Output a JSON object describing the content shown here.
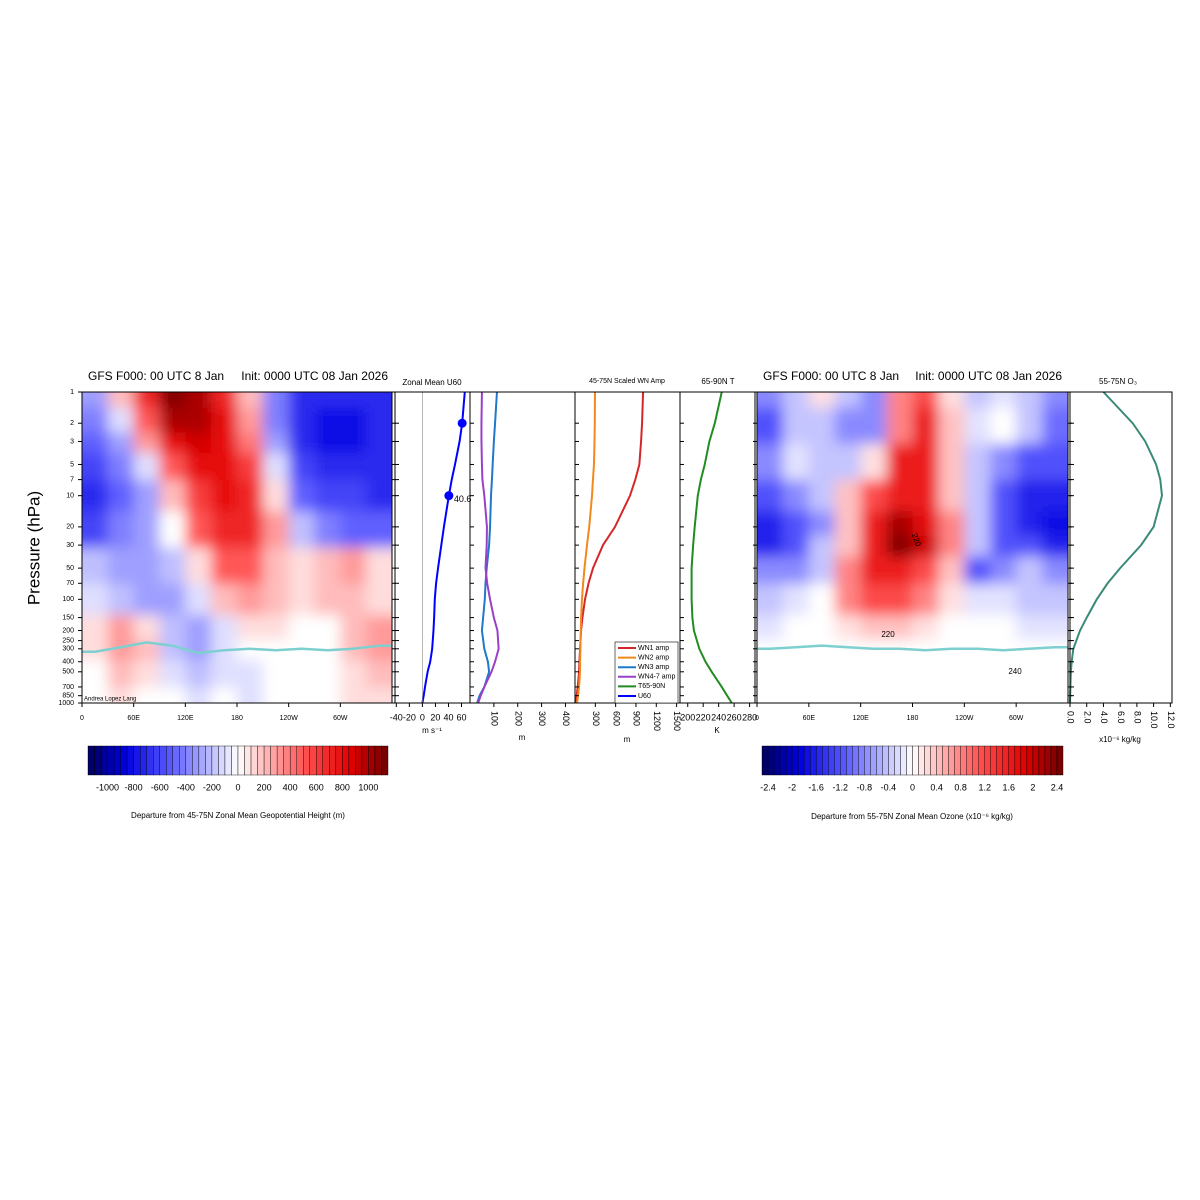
{
  "chart_data": [
    {
      "type": "heatmap",
      "title": "GFS F000: 00 UTC 8 Jan",
      "subtitle": "Init: 0000 UTC 08 Jan 2026",
      "ylabel": "Pressure (hPa)",
      "credit": "Andrea Lopez Lang",
      "x": [
        0,
        30,
        60,
        90,
        120,
        150,
        180,
        210,
        240,
        270,
        300,
        330
      ],
      "levels": [
        1,
        2,
        3,
        5,
        10,
        20,
        50,
        100,
        200,
        300,
        500,
        1000
      ],
      "values": [
        [
          -300,
          200,
          700,
          1100,
          1000,
          700,
          200,
          -400,
          -700,
          -700,
          -700,
          -700
        ],
        [
          -400,
          -100,
          500,
          1000,
          1000,
          800,
          300,
          -400,
          -700,
          -800,
          -800,
          -700
        ],
        [
          -500,
          -300,
          300,
          800,
          900,
          800,
          400,
          -300,
          -700,
          -800,
          -800,
          -700
        ],
        [
          -600,
          -400,
          -100,
          500,
          800,
          800,
          600,
          -100,
          -600,
          -700,
          -700,
          -700
        ],
        [
          -700,
          -500,
          -300,
          200,
          600,
          800,
          700,
          100,
          -500,
          -600,
          -600,
          -700
        ],
        [
          -600,
          -400,
          -300,
          0,
          500,
          700,
          700,
          300,
          -200,
          -400,
          -500,
          -500
        ],
        [
          -200,
          -300,
          -300,
          -200,
          100,
          500,
          500,
          200,
          100,
          200,
          300,
          100
        ],
        [
          -100,
          -200,
          -300,
          -300,
          -100,
          200,
          300,
          200,
          100,
          200,
          200,
          100
        ],
        [
          100,
          300,
          100,
          -200,
          -300,
          -100,
          100,
          100,
          0,
          0,
          200,
          300
        ],
        [
          100,
          300,
          200,
          -200,
          -300,
          -100,
          0,
          0,
          0,
          0,
          200,
          300
        ],
        [
          0,
          200,
          100,
          -100,
          -200,
          -100,
          -100,
          0,
          0,
          0,
          100,
          200
        ],
        [
          0,
          100,
          0,
          0,
          -100,
          0,
          -100,
          0,
          0,
          0,
          100,
          100
        ]
      ],
      "tropopause": {
        "color": "#7ecfcf",
        "values": [
          320,
          290,
          260,
          280,
          330,
          310,
          300,
          310,
          300,
          310,
          300,
          280
        ]
      },
      "xlim": [
        0,
        360
      ],
      "xticks": [
        0,
        {
          "value": 60,
          "label": "60E"
        },
        {
          "value": 120,
          "label": "120E"
        },
        180,
        {
          "value": 240,
          "label": "120W"
        },
        {
          "value": 300,
          "label": "60W"
        }
      ],
      "ylim": [
        1000,
        1
      ],
      "log": true,
      "yticks": [
        1,
        2,
        3,
        5,
        7,
        10,
        20,
        30,
        50,
        70,
        100,
        150,
        200,
        250,
        300,
        400,
        500,
        700,
        850,
        1000
      ],
      "colorbar": {
        "lim": [
          -1150,
          1150
        ],
        "step": 50,
        "ticks": [
          -1000,
          -800,
          -600,
          -400,
          -200,
          0,
          200,
          400,
          600,
          800,
          1000
        ],
        "label": "Departure from 45-75N Zonal Mean Geopotential Height (m)"
      }
    },
    {
      "type": "profile",
      "title": "Zonal Mean U60",
      "xlabel": "m s⁻¹",
      "xlim": [
        -42,
        73
      ],
      "xticks": [
        -40,
        -20,
        0,
        20,
        40,
        60
      ],
      "ylim": [
        1000,
        1
      ],
      "y": [
        1,
        2,
        3,
        5,
        7,
        10,
        20,
        30,
        50,
        70,
        100,
        150,
        200,
        300,
        400,
        500,
        700,
        850,
        1000
      ],
      "series": [
        {
          "name": "U60",
          "color": "#0000ff",
          "values": [
            65,
            61,
            57,
            50,
            45,
            40.6,
            33,
            29,
            24,
            21,
            19,
            18,
            17,
            15,
            12,
            8,
            4,
            2,
            0
          ]
        }
      ],
      "markers": [
        {
          "y": 2,
          "x": 61
        },
        {
          "y": 10,
          "x": 40.6,
          "label": true
        }
      ]
    },
    {
      "type": "profile",
      "title": "45-75N Scaled WN Amp",
      "xlabel": "m",
      "xlim": [
        0,
        440
      ],
      "xticks": [
        100,
        200,
        300,
        400
      ],
      "ylim": [
        1000,
        1
      ],
      "y": [
        1,
        2,
        3,
        5,
        7,
        10,
        20,
        30,
        50,
        70,
        100,
        150,
        200,
        300,
        400,
        500,
        700,
        850,
        1000
      ],
      "series": [
        {
          "name": "WN3 amp",
          "color": "#1f78c8",
          "values": [
            113,
            105,
            100,
            95,
            92,
            88,
            84,
            80,
            70,
            65,
            62,
            55,
            50,
            60,
            75,
            80,
            60,
            40,
            30
          ]
        },
        {
          "name": "WN4-7 amp",
          "color": "#9a3fc8",
          "values": [
            50,
            48,
            48,
            50,
            52,
            60,
            71,
            70,
            65,
            72,
            84,
            100,
            115,
            120,
            105,
            90,
            60,
            45,
            34
          ]
        }
      ]
    },
    {
      "type": "profile",
      "xlabel": "m",
      "xlim": [
        0,
        1550
      ],
      "xticks": [
        300,
        600,
        900,
        1200,
        1500
      ],
      "ylim": [
        1000,
        1
      ],
      "y": [
        1,
        2,
        3,
        5,
        7,
        10,
        20,
        30,
        50,
        70,
        100,
        150,
        200,
        300,
        400,
        500,
        700,
        850,
        1000
      ],
      "series": [
        {
          "name": "WN1 amp",
          "color": "#d62728",
          "values": [
            1005,
            990,
            975,
            950,
            890,
            812,
            590,
            413,
            266,
            200,
            148,
            110,
            89,
            75,
            65,
            60,
            40,
            25,
            15
          ]
        },
        {
          "name": "WN2 amp",
          "color": "#f08a1c",
          "values": [
            295,
            292,
            288,
            280,
            265,
            251,
            210,
            177,
            140,
            120,
            103,
            90,
            85,
            80,
            75,
            74,
            60,
            45,
            30
          ]
        }
      ]
    },
    {
      "type": "profile",
      "title": "65-90N T",
      "xlabel": "K",
      "xlim": [
        190,
        287
      ],
      "xticks": [
        200,
        220,
        240,
        260,
        280
      ],
      "ylim": [
        1000,
        1
      ],
      "y": [
        1,
        2,
        3,
        5,
        7,
        10,
        20,
        30,
        50,
        70,
        100,
        150,
        200,
        300,
        400,
        500,
        700,
        850,
        1000
      ],
      "series": [
        {
          "name": "T65-90N",
          "color": "#228b22",
          "values": [
            244,
            235,
            228,
            222,
            217,
            213,
            209,
            207,
            205,
            205,
            205,
            206,
            208,
            215,
            223,
            231,
            244,
            251,
            257
          ]
        }
      ]
    },
    {
      "type": "heatmap",
      "title": "GFS F000: 00 UTC 8 Jan",
      "subtitle": "Init: 0000 UTC 08 Jan 2026",
      "x": [
        0,
        30,
        60,
        90,
        120,
        150,
        180,
        210,
        240,
        270,
        300,
        330
      ],
      "levels": [
        1,
        2,
        5,
        10,
        20,
        30,
        50,
        100,
        200,
        300,
        500,
        1000
      ],
      "values": [
        [
          -0.8,
          -0.4,
          0.2,
          -0.4,
          -0.8,
          0.8,
          1.2,
          0.2,
          -0.4,
          -0.2,
          -0.4,
          -0.8
        ],
        [
          -1.2,
          -0.4,
          -0.4,
          -0.8,
          -0.8,
          0.8,
          1.6,
          0.4,
          -0.2,
          0,
          -0.4,
          -1.0
        ],
        [
          -0.8,
          -0.2,
          -0.4,
          -0.4,
          0.2,
          1.6,
          1.6,
          0.4,
          -0.4,
          -0.8,
          -1.2,
          -1.2
        ],
        [
          -1.2,
          -0.8,
          -0.4,
          0.4,
          1.2,
          1.6,
          1.6,
          0.4,
          -0.4,
          -1.2,
          -1.6,
          -1.6
        ],
        [
          -1.6,
          -1.2,
          -0.8,
          0.4,
          1.6,
          2.2,
          1.8,
          0.8,
          -0.4,
          -1.2,
          -1.6,
          -1.8
        ],
        [
          -1.6,
          -1.2,
          -0.4,
          0.4,
          1.6,
          2.4,
          2.0,
          0.8,
          -0.4,
          -1.2,
          -1.2,
          -1.6
        ],
        [
          -0.8,
          -0.8,
          -0.4,
          0.8,
          1.6,
          1.6,
          1.2,
          0.4,
          -1.2,
          -0.8,
          -0.4,
          -0.8
        ],
        [
          -0.4,
          -0.2,
          0,
          0.8,
          1.2,
          1.2,
          0.8,
          0.2,
          -0.2,
          -0.2,
          -0.4,
          -0.4
        ],
        [
          -0.2,
          0,
          0,
          0.2,
          0.4,
          0.4,
          0.2,
          0,
          0,
          0,
          -0.2,
          -0.2
        ],
        [
          0,
          0,
          0,
          0,
          0,
          0,
          0,
          0,
          0,
          0,
          0,
          0
        ],
        [
          0,
          0,
          0,
          0,
          0,
          0,
          0,
          0,
          0,
          0,
          0,
          0
        ],
        [
          0,
          0,
          0,
          0,
          0,
          0,
          0,
          0,
          0,
          0,
          0,
          0
        ]
      ],
      "tropopause": {
        "color": "#7ecfcf",
        "values": [
          300,
          290,
          280,
          290,
          300,
          300,
          310,
          300,
          300,
          310,
          300,
          290
        ]
      },
      "annotations": [
        "220",
        "220",
        "240"
      ],
      "xlim": [
        0,
        360
      ],
      "xticks": [
        0,
        {
          "value": 60,
          "label": "60E"
        },
        {
          "value": 120,
          "label": "120E"
        },
        180,
        {
          "value": 240,
          "label": "120W"
        },
        {
          "value": 300,
          "label": "60W"
        }
      ],
      "ylim": [
        1000,
        1
      ],
      "log": true,
      "yticks": [
        1,
        2,
        3,
        5,
        7,
        10,
        20,
        30,
        50,
        70,
        100,
        150,
        200,
        250,
        300,
        400,
        500,
        700,
        850,
        1000
      ],
      "colorbar": {
        "lim": [
          -2.5,
          2.5
        ],
        "step": 0.1,
        "ticks": [
          -2.4,
          -2,
          -1.6,
          -1.2,
          -0.8,
          -0.4,
          0,
          0.4,
          0.8,
          1.2,
          1.6,
          2,
          2.4
        ],
        "label": "Departure from 55-75N Zonal Mean Ozone (x10⁻⁶ kg/kg)"
      }
    },
    {
      "type": "profile",
      "title": "55-75N O₃",
      "xlabel": "x10⁻⁶ kg/kg",
      "xlim": [
        0,
        12.2
      ],
      "xticks": [
        {
          "value": 0,
          "label": "0.0"
        },
        {
          "value": 2,
          "label": "2.0"
        },
        {
          "value": 4,
          "label": "4.0"
        },
        {
          "value": 6,
          "label": "6.0"
        },
        {
          "value": 8,
          "label": "8.0"
        },
        {
          "value": 10,
          "label": "10.0"
        },
        {
          "value": 12,
          "label": "12.0"
        }
      ],
      "ylim": [
        1000,
        1
      ],
      "y": [
        1,
        2,
        3,
        5,
        7,
        10,
        20,
        30,
        50,
        70,
        100,
        150,
        200,
        300,
        400,
        500,
        700,
        850,
        1000
      ],
      "series": [
        {
          "color": "#3a8a78",
          "values": [
            4,
            7.5,
            9,
            10.3,
            10.8,
            11,
            10,
            8.5,
            6,
            4.5,
            3.2,
            2,
            1.2,
            0.4,
            0.2,
            0.1,
            0.05,
            0.02,
            0
          ]
        }
      ]
    }
  ]
}
